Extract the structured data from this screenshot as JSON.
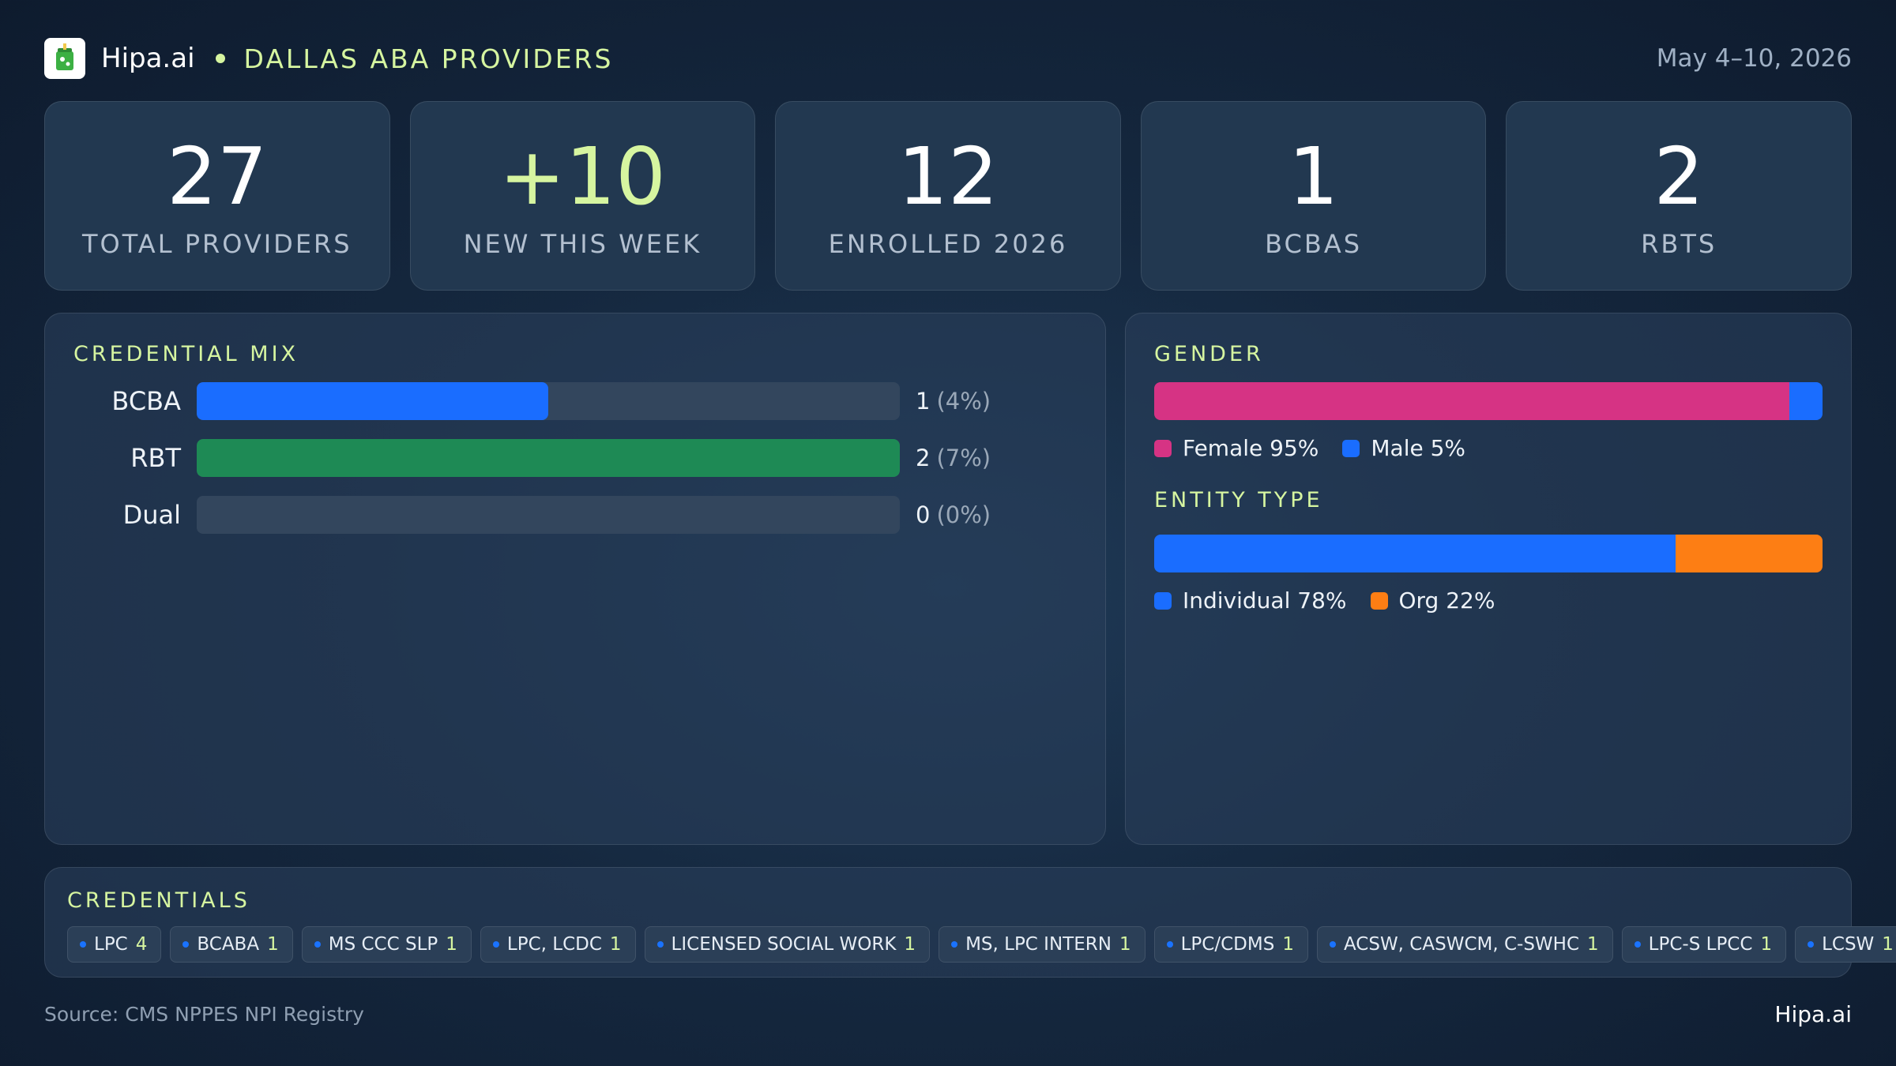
{
  "header": {
    "logo_icon": "cup-drink-icon",
    "brand": "Hipa.ai",
    "region": "DALLAS ABA PROVIDERS",
    "date_range": "May 4–10, 2026"
  },
  "kpis": [
    {
      "value": "27",
      "label": "TOTAL PROVIDERS"
    },
    {
      "value": "+10",
      "label": "NEW THIS WEEK"
    },
    {
      "value": "12",
      "label": "ENROLLED 2026"
    },
    {
      "value": "1",
      "label": "BCBAS"
    },
    {
      "value": "2",
      "label": "RBTS"
    }
  ],
  "credential_mix": {
    "title": "CREDENTIAL MIX",
    "rows": [
      {
        "label": "BCBA",
        "count": "1",
        "pct": "(4%)",
        "fill": 0.5,
        "color": "#1a6dff"
      },
      {
        "label": "RBT",
        "count": "2",
        "pct": "(7%)",
        "fill": 1.0,
        "color": "#1e8a55"
      },
      {
        "label": "Dual",
        "count": "0",
        "pct": "(0%)",
        "fill": 0.0,
        "color": "#1a6dff"
      }
    ]
  },
  "gender": {
    "title": "GENDER",
    "female_label": "Female 95%",
    "male_label": "Male 5%",
    "female_share": 0.95,
    "male_share": 0.05,
    "female_color": "#d63384",
    "male_color": "#1a6dff"
  },
  "entity_type": {
    "title": "ENTITY TYPE",
    "individual_label": "Individual 78%",
    "org_label": "Org 22%",
    "individual_share": 0.78,
    "org_share": 0.22,
    "individual_color": "#1a6dff",
    "org_color": "#fd7e14"
  },
  "credentials": {
    "title": "CREDENTIALS",
    "chips": [
      {
        "name": "LPC",
        "count": "4"
      },
      {
        "name": "BCABA",
        "count": "1"
      },
      {
        "name": "MS CCC SLP",
        "count": "1"
      },
      {
        "name": "LPC, LCDC",
        "count": "1"
      },
      {
        "name": "LICENSED SOCIAL WORK",
        "count": "1"
      },
      {
        "name": "MS, LPC INTERN",
        "count": "1"
      },
      {
        "name": "LPC/CDMS",
        "count": "1"
      },
      {
        "name": "ACSW, CASWCM, C-SWHC",
        "count": "1"
      },
      {
        "name": "LPC-S LPCC",
        "count": "1"
      },
      {
        "name": "LCSW",
        "count": "1"
      }
    ]
  },
  "footer": {
    "source": "Source: CMS NPPES NPI Registry",
    "brand": "Hipa.ai"
  },
  "colors": {
    "accent": "#d6f5a0",
    "background": "#15283f"
  }
}
